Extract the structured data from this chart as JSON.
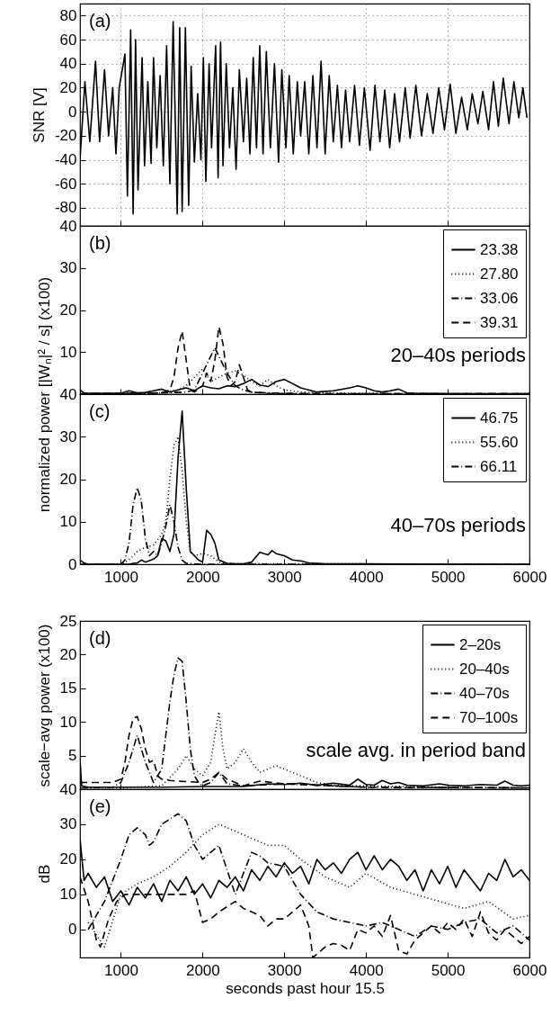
{
  "chart_data": [
    {
      "type": "line",
      "ylabel": "SNR [V]",
      "annotations": [
        "(a)"
      ],
      "xlim": [
        500,
        6000
      ],
      "xticks": [
        1000,
        2000,
        3000,
        4000,
        5000,
        6000
      ],
      "ylim": [
        -95,
        90
      ],
      "yticks": [
        -80,
        -60,
        -40,
        -20,
        0,
        20,
        40,
        60,
        80
      ],
      "grid": true,
      "tick_labels": "y",
      "series": [
        {
          "color": "#000000",
          "line_style": "solid",
          "x": [
            500,
            560,
            620,
            690,
            740,
            800,
            850,
            900,
            940,
            980,
            1050,
            1080,
            1120,
            1150,
            1180,
            1210,
            1260,
            1290,
            1330,
            1370,
            1400,
            1440,
            1480,
            1520,
            1560,
            1600,
            1640,
            1690,
            1720,
            1750,
            1790,
            1830,
            1860,
            1900,
            1940,
            1980,
            2010,
            2040,
            2080,
            2110,
            2160,
            2190,
            2220,
            2250,
            2290,
            2330,
            2370,
            2410,
            2450,
            2500,
            2540,
            2580,
            2620,
            2660,
            2700,
            2740,
            2780,
            2830,
            2880,
            2930,
            2970,
            3020,
            3060,
            3110,
            3160,
            3200,
            3250,
            3300,
            3350,
            3400,
            3450,
            3500,
            3550,
            3600,
            3650,
            3700,
            3750,
            3800,
            3860,
            3920,
            3980,
            4050,
            4110,
            4170,
            4230,
            4290,
            4350,
            4410,
            4480,
            4540,
            4610,
            4680,
            4750,
            4820,
            4890,
            4960,
            5030,
            5100,
            5170,
            5240,
            5300,
            5370,
            5430,
            5500,
            5560,
            5620,
            5680,
            5750,
            5810,
            5870,
            5920,
            5970
          ],
          "values": [
            -40,
            25,
            -25,
            42,
            -25,
            35,
            -20,
            20,
            -35,
            20,
            48,
            -70,
            68,
            -85,
            60,
            -65,
            45,
            -45,
            25,
            -43,
            45,
            -30,
            30,
            -45,
            55,
            -60,
            75,
            -85,
            70,
            -83,
            70,
            -78,
            38,
            -42,
            15,
            -40,
            45,
            -58,
            40,
            -30,
            55,
            -55,
            58,
            -45,
            40,
            -30,
            20,
            -48,
            35,
            -25,
            28,
            -35,
            45,
            -30,
            55,
            -35,
            50,
            -30,
            40,
            -42,
            35,
            -30,
            30,
            -35,
            25,
            -20,
            25,
            -35,
            30,
            -30,
            42,
            -35,
            30,
            -25,
            22,
            -30,
            18,
            -25,
            22,
            -28,
            20,
            -32,
            22,
            -25,
            18,
            -30,
            15,
            -25,
            20,
            -22,
            22,
            -20,
            15,
            -18,
            20,
            -15,
            23,
            -18,
            12,
            -15,
            15,
            -10,
            17,
            -15,
            25,
            -12,
            28,
            -10,
            25,
            -5,
            20,
            -5
          ]
        }
      ]
    },
    {
      "type": "line",
      "ylabel": "normalized power [|Wₙ|² / s] (x100)",
      "annotations": [
        "(b)",
        "20–40s periods"
      ],
      "xlim": [
        500,
        6000
      ],
      "xticks": [
        1000,
        2000,
        3000,
        4000,
        5000,
        6000
      ],
      "ylim": [
        0,
        40
      ],
      "yticks": [
        10,
        20,
        30,
        40
      ],
      "tick_labels": "y",
      "legend": "top right",
      "series": [
        {
          "name": "23.38",
          "color": "#000000",
          "line_style": "solid",
          "x": [
            500,
            550,
            600,
            1000,
            1100,
            1200,
            1300,
            1400,
            1500,
            1600,
            1700,
            1800,
            1900,
            2000,
            2100,
            2200,
            2300,
            2400,
            2500,
            2600,
            2700,
            2800,
            2900,
            3000,
            3100,
            3200,
            3400,
            3600,
            3800,
            3900,
            4000,
            4100,
            4200,
            4300,
            4400,
            4500,
            4600,
            5000,
            5500,
            6000
          ],
          "values": [
            1,
            0.3,
            0.2,
            0.2,
            0.8,
            0.3,
            0.4,
            0.8,
            1.2,
            0.5,
            1,
            1.5,
            0.8,
            2,
            1.5,
            1.3,
            2,
            1.8,
            2.5,
            3.5,
            2.2,
            1.8,
            3,
            3.5,
            2.5,
            1.5,
            0.5,
            0.8,
            1.5,
            2,
            1.5,
            0.8,
            0.5,
            0.8,
            1.2,
            0.3,
            0.2,
            0.1,
            0.1,
            0.1
          ]
        },
        {
          "name": "27.80",
          "color": "#000000",
          "line_style": "dotted",
          "x": [
            500,
            1000,
            1500,
            1700,
            1800,
            1900,
            2000,
            2100,
            2200,
            2300,
            2400,
            2500,
            2600,
            2700,
            2800,
            2900,
            3000,
            3200,
            3500,
            4000,
            5000,
            6000
          ],
          "values": [
            0.1,
            0.1,
            0.3,
            1,
            2,
            4,
            6,
            3,
            4,
            5,
            5.5,
            4.5,
            3,
            2,
            3.5,
            2,
            1,
            0.5,
            0.3,
            0.2,
            0.1,
            0.1
          ]
        },
        {
          "name": "33.06",
          "color": "#000000",
          "line_style": "dashdot",
          "x": [
            500,
            1000,
            1500,
            1800,
            1900,
            2000,
            2100,
            2150,
            2200,
            2300,
            2400,
            2500,
            2600,
            2800,
            3000,
            3500,
            4000,
            6000
          ],
          "values": [
            0.1,
            0.1,
            0.3,
            0.5,
            1,
            5,
            9,
            11,
            9,
            5,
            2,
            1,
            0.5,
            0.3,
            0.2,
            0.1,
            0.1,
            0.1
          ]
        },
        {
          "name": "39.31",
          "color": "#000000",
          "line_style": "dashed",
          "x": [
            500,
            1500,
            1600,
            1650,
            1700,
            1750,
            1800,
            1850,
            1900,
            2000,
            2050,
            2100,
            2150,
            2200,
            2250,
            2300,
            2350,
            2400,
            2450,
            2500,
            2550,
            2600,
            2800,
            3000,
            6000
          ],
          "values": [
            0.1,
            0.3,
            1,
            4,
            11,
            15,
            8,
            1,
            0.5,
            2,
            5,
            3,
            8,
            16,
            12,
            4,
            2,
            3,
            7,
            4,
            1,
            0.5,
            0.2,
            0.1,
            0.1
          ]
        }
      ]
    },
    {
      "type": "line",
      "annotations": [
        "(c)",
        "40–70s periods"
      ],
      "xlim": [
        500,
        6000
      ],
      "xticks": [
        1000,
        2000,
        3000,
        4000,
        5000,
        6000
      ],
      "ylim": [
        0,
        40
      ],
      "yticks": [
        0,
        10,
        20,
        30,
        40
      ],
      "legend": "top right",
      "series": [
        {
          "name": "46.75",
          "color": "#000000",
          "line_style": "solid",
          "x": [
            500,
            550,
            600,
            1000,
            1100,
            1150,
            1200,
            1250,
            1300,
            1400,
            1450,
            1500,
            1550,
            1600,
            1650,
            1700,
            1750,
            1800,
            1850,
            1900,
            1950,
            2000,
            2050,
            2100,
            2150,
            2200,
            2300,
            2400,
            2500,
            2600,
            2700,
            2800,
            2850,
            2900,
            3000,
            3100,
            3200,
            3300,
            3500,
            4000,
            5000,
            6000
          ],
          "values": [
            1,
            0.3,
            0,
            0,
            0,
            0.2,
            0.3,
            1,
            0.5,
            1.2,
            2,
            6,
            5.5,
            3,
            7,
            25,
            36,
            18,
            3,
            2,
            1,
            0.5,
            8,
            7,
            5,
            1,
            0.2,
            0.1,
            0.1,
            0.5,
            2.8,
            2.2,
            3.2,
            2.5,
            2,
            1,
            0.8,
            0.3,
            0.1,
            0.1,
            0,
            0
          ]
        },
        {
          "name": "55.60",
          "color": "#000000",
          "line_style": "dotted",
          "x": [
            500,
            1000,
            1100,
            1200,
            1300,
            1400,
            1500,
            1550,
            1600,
            1650,
            1700,
            1750,
            1800,
            1850,
            1900,
            2000,
            2100,
            2200,
            2300,
            2500,
            3000,
            6000
          ],
          "values": [
            0,
            0,
            1,
            3,
            4,
            4.5,
            7,
            10,
            20,
            28,
            30,
            22,
            10,
            3,
            2,
            2.5,
            2,
            0.5,
            0.2,
            0.1,
            0.1,
            0
          ]
        },
        {
          "name": "66.11",
          "color": "#000000",
          "line_style": "dashdot",
          "x": [
            500,
            1000,
            1050,
            1100,
            1150,
            1200,
            1250,
            1300,
            1350,
            1400,
            1450,
            1500,
            1550,
            1600,
            1650,
            1700,
            1750,
            1800,
            2000,
            6000
          ],
          "values": [
            0,
            0,
            1,
            5,
            14,
            18,
            15,
            6,
            2,
            3,
            2,
            5,
            9,
            14,
            10,
            4,
            1,
            0.2,
            0,
            0
          ]
        }
      ]
    },
    {
      "type": "line",
      "ylabel": "scale−avg power (x100)",
      "annotations": [
        "(d)",
        "scale avg. in period band"
      ],
      "xlim": [
        500,
        6000
      ],
      "xticks": [
        1000,
        2000,
        3000,
        4000,
        5000,
        6000
      ],
      "ylim": [
        0,
        25
      ],
      "yticks": [
        5,
        10,
        15,
        20,
        25
      ],
      "tick_labels": "y",
      "legend": "top right",
      "series": [
        {
          "name": "2–20s",
          "color": "#000000",
          "line_style": "solid",
          "x": [
            500,
            520,
            600,
            1000,
            1500,
            2000,
            2500,
            2800,
            3000,
            3200,
            3400,
            3600,
            3800,
            3900,
            4000,
            4100,
            4200,
            4300,
            4400,
            4500,
            4700,
            4900,
            5000,
            5200,
            5400,
            5600,
            5700,
            5800,
            5900,
            6000
          ],
          "values": [
            4.5,
            0.5,
            0.3,
            0.3,
            0.3,
            0.4,
            0.4,
            0.8,
            0.7,
            0.9,
            0.6,
            0.9,
            0.6,
            1.5,
            0.7,
            0.6,
            1.3,
            0.8,
            1,
            0.6,
            0.5,
            0.8,
            0.6,
            0.5,
            0.7,
            0.6,
            1.2,
            0.6,
            0.5,
            0.6
          ]
        },
        {
          "name": "20–40s",
          "color": "#000000",
          "line_style": "dotted",
          "x": [
            500,
            1000,
            1500,
            1700,
            1800,
            1900,
            2000,
            2100,
            2150,
            2200,
            2250,
            2300,
            2400,
            2500,
            2600,
            2700,
            2800,
            2900,
            3000,
            3100,
            3200,
            3400,
            3600,
            4000,
            5000,
            6000
          ],
          "values": [
            0.2,
            0.2,
            0.5,
            3,
            5,
            3,
            2,
            4,
            8,
            11.5,
            6,
            3,
            4,
            6,
            4,
            2.5,
            3,
            3.5,
            3,
            2.5,
            2,
            1,
            0.6,
            0.5,
            0.3,
            0.2
          ]
        },
        {
          "name": "40–70s",
          "color": "#000000",
          "line_style": "dashdot",
          "x": [
            500,
            900,
            1000,
            1100,
            1200,
            1300,
            1400,
            1500,
            1550,
            1600,
            1650,
            1700,
            1750,
            1800,
            1850,
            1900,
            1950,
            2000,
            2100,
            2200,
            2300,
            2500,
            3000,
            4000,
            6000
          ],
          "values": [
            0.2,
            0.3,
            1,
            4,
            8,
            4,
            1,
            3,
            8,
            13,
            17,
            19.5,
            19,
            13,
            6,
            2,
            1,
            0.5,
            1,
            2.5,
            0.8,
            0.5,
            0.8,
            0.3,
            0.2
          ]
        },
        {
          "name": "70–100s",
          "color": "#000000",
          "line_style": "dashed",
          "x": [
            500,
            800,
            900,
            1000,
            1050,
            1100,
            1150,
            1200,
            1250,
            1300,
            1350,
            1400,
            1450,
            1500,
            1600,
            1700,
            2000,
            2100,
            2200,
            2300,
            2500,
            2700,
            3000,
            4000,
            6000
          ],
          "values": [
            1,
            1,
            1,
            1.5,
            4,
            8,
            10.5,
            10.8,
            9,
            6,
            4,
            4.3,
            2,
            1.5,
            1.3,
            1.2,
            1,
            1.5,
            2.5,
            1.5,
            0.5,
            1.2,
            0.8,
            0.3,
            0.2
          ]
        }
      ]
    },
    {
      "type": "line",
      "xlabel": "seconds past hour 15.5",
      "ylabel": "dB",
      "annotations": [
        "(e)"
      ],
      "xlim": [
        500,
        6000
      ],
      "xticks": [
        1000,
        2000,
        3000,
        4000,
        5000,
        6000
      ],
      "ylim": [
        -8,
        40
      ],
      "yticks": [
        0,
        10,
        20,
        30,
        40
      ],
      "series": [
        {
          "color": "#000000",
          "line_style": "solid",
          "x": [
            500,
            550,
            600,
            700,
            800,
            900,
            1000,
            1100,
            1200,
            1300,
            1400,
            1500,
            1600,
            1700,
            1800,
            1900,
            2000,
            2100,
            2200,
            2300,
            2400,
            2500,
            2600,
            2700,
            2800,
            2900,
            3000,
            3100,
            3200,
            3300,
            3400,
            3500,
            3600,
            3700,
            3800,
            3900,
            4000,
            4100,
            4200,
            4300,
            4400,
            4500,
            4600,
            4700,
            4800,
            4900,
            5000,
            5100,
            5200,
            5300,
            5400,
            5500,
            5600,
            5700,
            5800,
            5900,
            6000
          ],
          "values": [
            26,
            14,
            16,
            12,
            15,
            8,
            11,
            7,
            12,
            9,
            13,
            8,
            14,
            11,
            15,
            10,
            13,
            9,
            14,
            12,
            15,
            11,
            17,
            14,
            18,
            15,
            19,
            16,
            18,
            13,
            20,
            17,
            19,
            16,
            20,
            22,
            17,
            21,
            17,
            20,
            18,
            14,
            17,
            11,
            17,
            13,
            18,
            12,
            17,
            14,
            11,
            16,
            14,
            20,
            15,
            17,
            14
          ]
        },
        {
          "color": "#000000",
          "line_style": "dotted",
          "x": [
            600,
            800,
            1000,
            1200,
            1400,
            1600,
            1800,
            2000,
            2200,
            2500,
            2800,
            3000,
            3200,
            3500,
            3800,
            4000,
            4300,
            4600,
            4900,
            5200,
            5500,
            5800,
            6000
          ],
          "values": [
            2,
            -5,
            10,
            13,
            15,
            18,
            22,
            27,
            30,
            27,
            24,
            24,
            20,
            15,
            12,
            16,
            12,
            10,
            8,
            6,
            8,
            3,
            4
          ]
        },
        {
          "color": "#000000",
          "line_style": "dashdot",
          "x": [
            600,
            800,
            1000,
            1100,
            1200,
            1300,
            1350,
            1400,
            1500,
            1700,
            1800,
            1900,
            2000,
            2200,
            2300,
            2400,
            2600,
            2700,
            2800,
            3000,
            3200,
            3400,
            3600,
            3800,
            4000,
            4200,
            4400,
            4600,
            4800,
            5000,
            5200,
            5400,
            5600,
            5800,
            6000
          ],
          "values": [
            0,
            8,
            20,
            27,
            29,
            27,
            24,
            25,
            30,
            33,
            31,
            24,
            20,
            24,
            17,
            10,
            22,
            21,
            19,
            18,
            10,
            5,
            3,
            2,
            1,
            2,
            0,
            -2,
            1,
            0,
            2,
            3,
            -1,
            1,
            -3
          ]
        },
        {
          "color": "#000000",
          "line_style": "dashed",
          "x": [
            500,
            600,
            700,
            750,
            850,
            950,
            1050,
            1800,
            1900,
            2000,
            2100,
            2200,
            2400,
            2500,
            2600,
            2700,
            2800,
            2900,
            3000,
            3100,
            3200,
            3300,
            3350,
            3400,
            3500,
            3600,
            3700,
            3800,
            3900,
            4000,
            4100,
            4200,
            4300,
            4400,
            4500,
            4600,
            4700,
            4800,
            4900,
            5000,
            5100,
            5200,
            5300,
            5400,
            5500,
            5600,
            5700,
            5800,
            5900,
            6000
          ],
          "values": [
            15,
            8,
            -3,
            -5,
            3,
            8,
            10,
            10,
            11,
            2,
            3,
            5,
            8,
            6,
            5,
            4,
            1,
            3,
            3,
            5,
            7,
            1,
            -8,
            -7,
            -5,
            -4,
            -4.5,
            -6,
            0,
            -1,
            1,
            -2,
            4,
            -6,
            -7,
            -3,
            -1,
            1,
            -1,
            2,
            0,
            3,
            -2,
            5,
            -1,
            -3,
            0,
            -2,
            -4,
            -2
          ]
        }
      ]
    }
  ]
}
